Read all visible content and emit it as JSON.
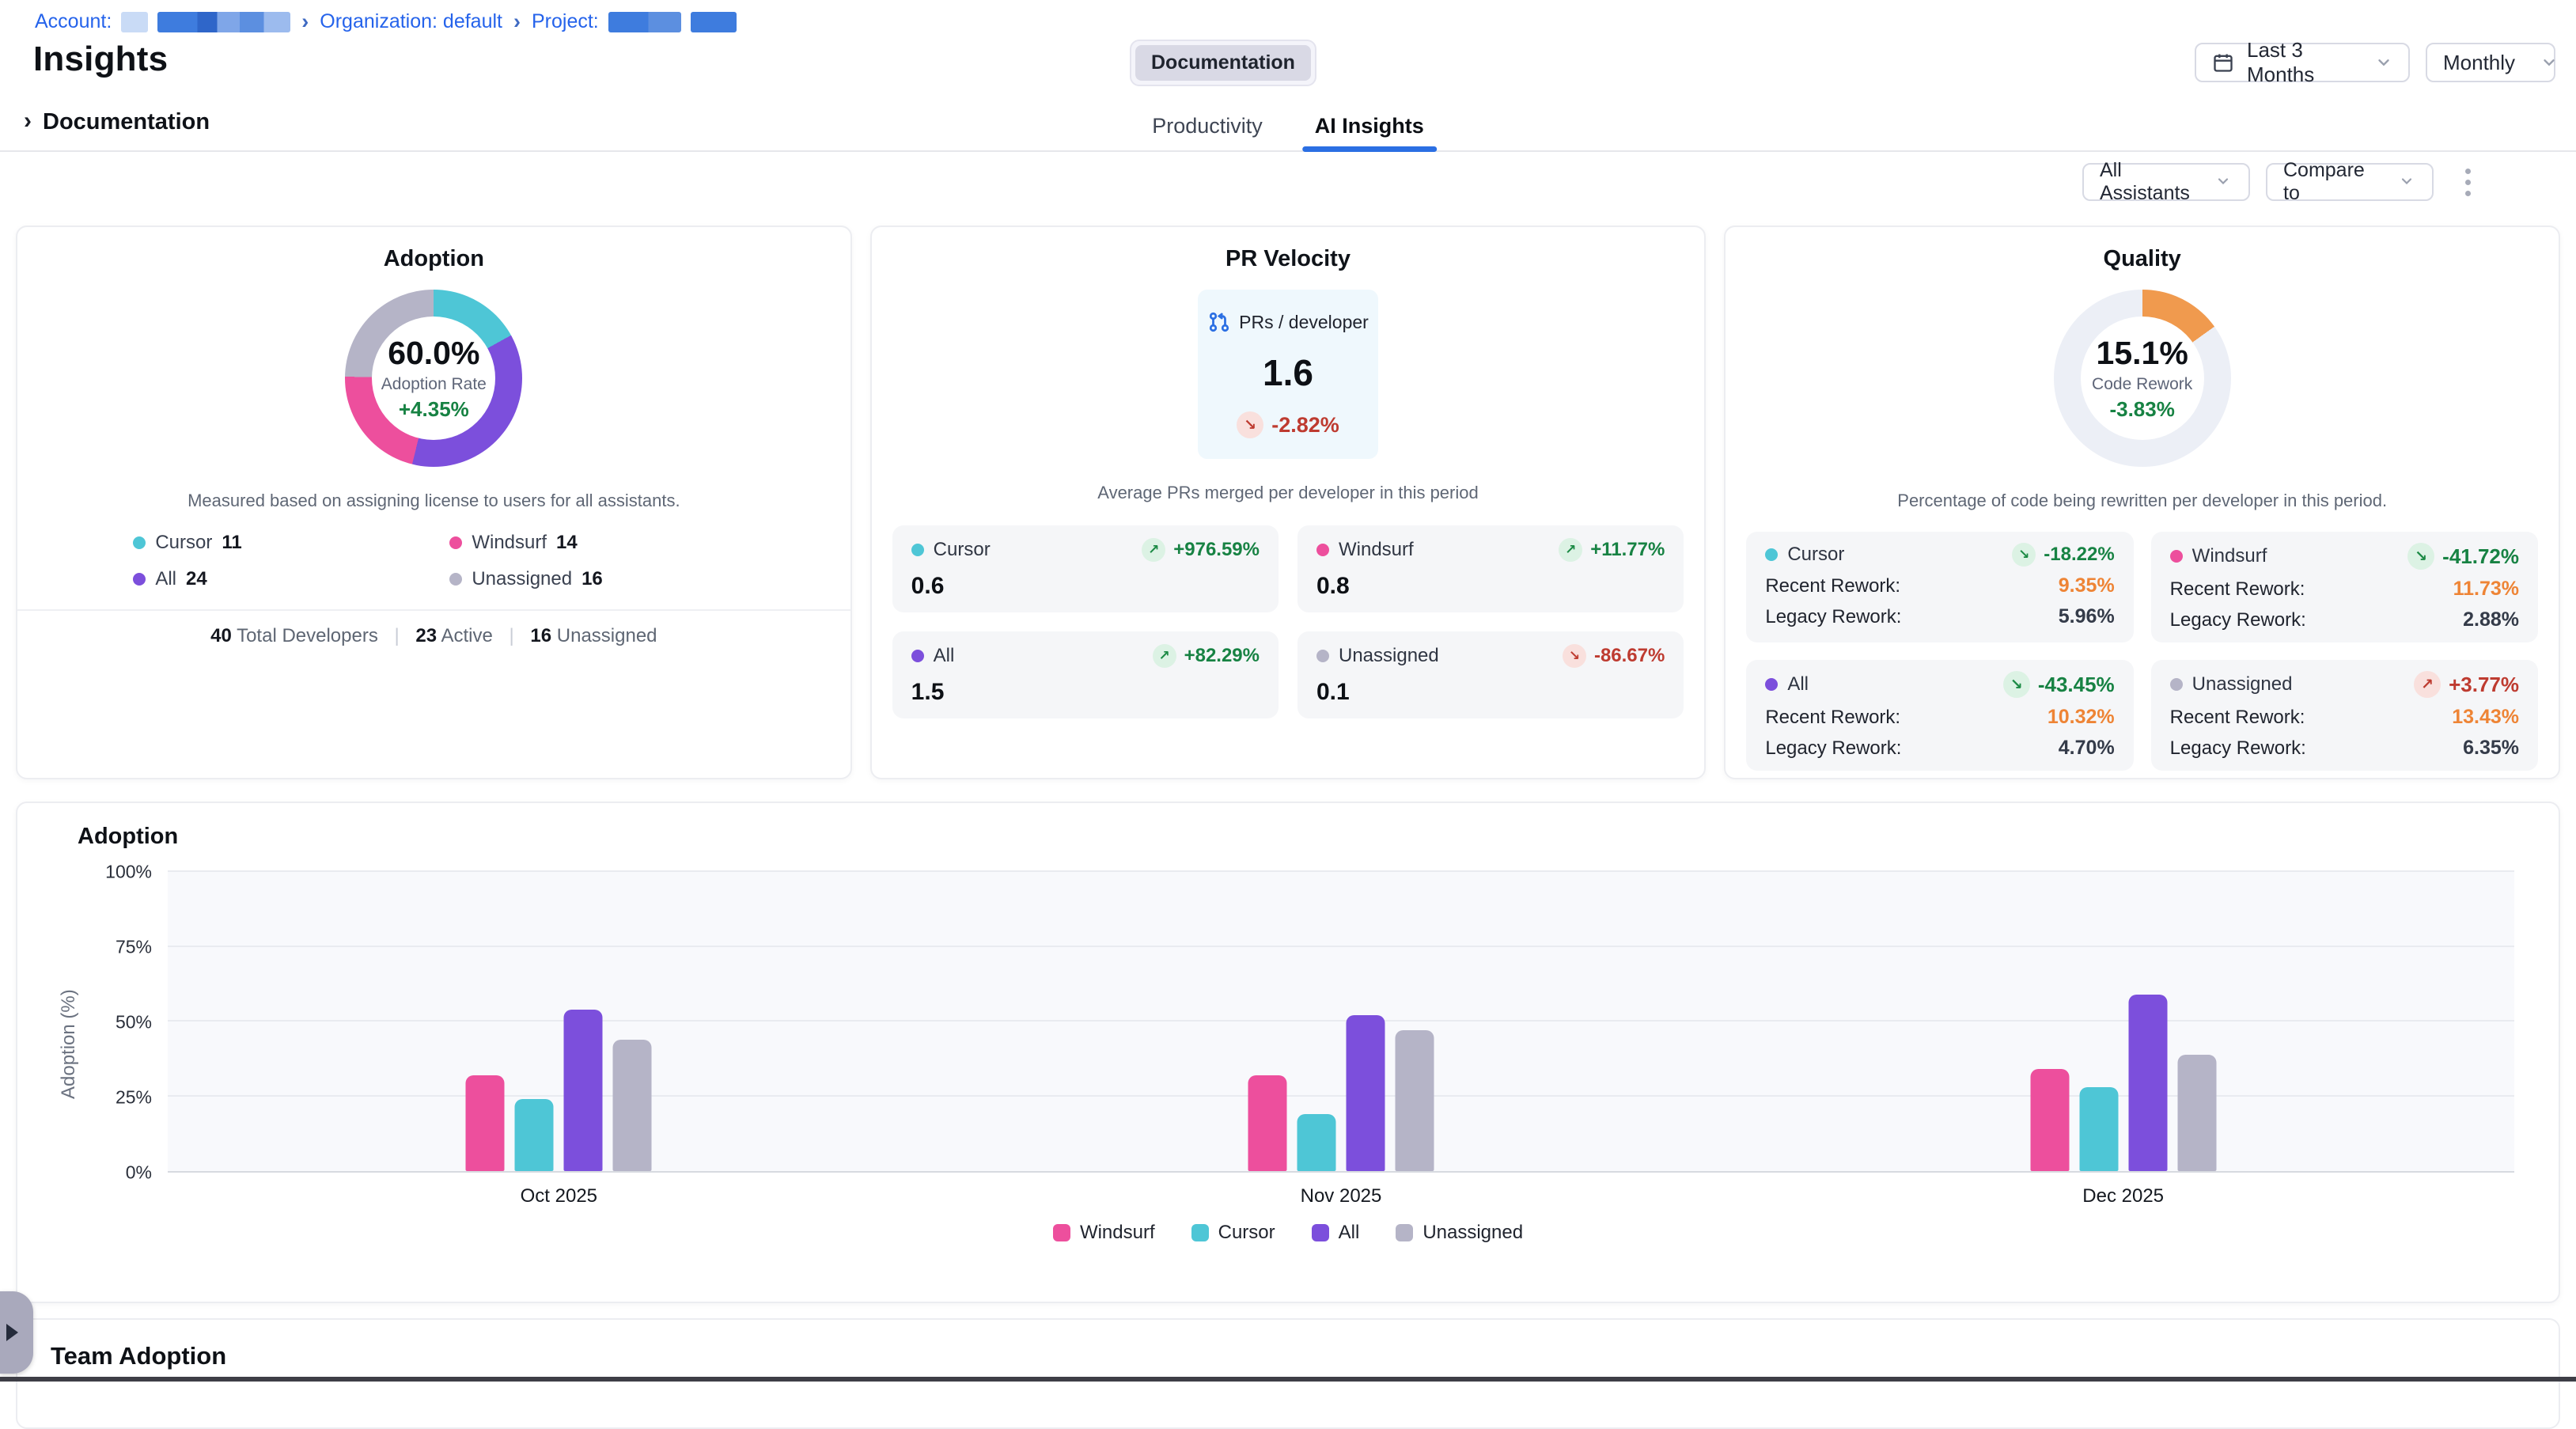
{
  "breadcrumb": {
    "account_label": "Account:",
    "separator": "›",
    "organization_label": "Organization: default",
    "project_label": "Project:"
  },
  "header": {
    "title": "Insights",
    "documentation_chip": "Documentation",
    "time_range": "Last 3 Months",
    "granularity": "Monthly"
  },
  "tabs": [
    {
      "label": "Productivity",
      "active": false
    },
    {
      "label": "AI Insights",
      "active": true
    }
  ],
  "section_header": {
    "title": "Documentation"
  },
  "controls": {
    "assistants_filter": "All Assistants",
    "compare_filter": "Compare to"
  },
  "series_colors": {
    "windsurf": "#ED4F9D",
    "cursor": "#4EC6D6",
    "all": "#7C4FDC",
    "unassigned": "#B5B4C7"
  },
  "accent_colors": {
    "blue": "#2B6FE3",
    "green": "#178243",
    "red": "#BE3B30",
    "orange": "#EE8435"
  },
  "adoption_card": {
    "title": "Adoption",
    "donut": {
      "value": "60.0%",
      "label": "Adoption Rate",
      "delta": "+4.35%",
      "delta_color": "green",
      "segments": [
        {
          "key": "cursor",
          "deg": 61
        },
        {
          "key": "all",
          "deg": 133
        },
        {
          "key": "windsurf",
          "deg": 77
        },
        {
          "key": "unassigned",
          "deg": 89
        }
      ]
    },
    "description": "Measured based on assigning license to users for all assistants.",
    "legend": [
      {
        "key": "cursor",
        "name": "Cursor",
        "count": "11"
      },
      {
        "key": "windsurf",
        "name": "Windsurf",
        "count": "14"
      },
      {
        "key": "all",
        "name": "All",
        "count": "24"
      },
      {
        "key": "unassigned",
        "name": "Unassigned",
        "count": "16"
      }
    ],
    "totals": {
      "developers": "40",
      "developers_label": "Total Developers",
      "active": "23",
      "active_label": "Active",
      "unassigned": "16",
      "unassigned_label": "Unassigned",
      "divider": "|"
    }
  },
  "pr_velocity_card": {
    "title": "PR Velocity",
    "metric": {
      "label": "PRs / developer",
      "value": "1.6",
      "trend": "-2.82%",
      "arrow": "↘",
      "trend_color": "red"
    },
    "description": "Average PRs merged per developer in this period",
    "tiles": [
      {
        "key": "cursor",
        "name": "Cursor",
        "value": "0.6",
        "trend": "+976.59%",
        "arrow": "↗",
        "trend_color": "green"
      },
      {
        "key": "windsurf",
        "name": "Windsurf",
        "value": "0.8",
        "trend": "+11.77%",
        "arrow": "↗",
        "trend_color": "green"
      },
      {
        "key": "all",
        "name": "All",
        "value": "1.5",
        "trend": "+82.29%",
        "arrow": "↗",
        "trend_color": "green"
      },
      {
        "key": "unassigned",
        "name": "Unassigned",
        "value": "0.1",
        "trend": "-86.67%",
        "arrow": "↘",
        "trend_color": "red"
      }
    ]
  },
  "quality_card": {
    "title": "Quality",
    "donut": {
      "value": "15.1%",
      "label": "Code Rework",
      "delta": "-3.83%",
      "delta_color": "green",
      "percent": 15.1,
      "arc_color": "#F09A4E",
      "track_color": "#ECEFF6"
    },
    "description": "Percentage of code being rewritten per developer in this period.",
    "recent_label": "Recent Rework:",
    "legacy_label": "Legacy Rework:",
    "tiles": [
      {
        "key": "cursor",
        "name": "Cursor",
        "trend": "-18.22%",
        "arrow": "↘",
        "trend_color": "green",
        "recent": "9.35%",
        "legacy": "5.96%"
      },
      {
        "key": "windsurf",
        "name": "Windsurf",
        "trend": "-41.72%",
        "arrow": "↘",
        "trend_color": "green",
        "recent": "11.73%",
        "legacy": "2.88%"
      },
      {
        "key": "all",
        "name": "All",
        "trend": "-43.45%",
        "arrow": "↘",
        "trend_color": "green",
        "recent": "10.32%",
        "legacy": "4.70%"
      },
      {
        "key": "unassigned",
        "name": "Unassigned",
        "trend": "+3.77%",
        "arrow": "↗",
        "trend_color": "red",
        "recent": "13.43%",
        "legacy": "6.35%"
      }
    ]
  },
  "chart_data": {
    "type": "bar",
    "title": "Adoption",
    "ylabel": "Adoption (%)",
    "ylim": [
      0,
      100
    ],
    "yticks": [
      0,
      25,
      50,
      75,
      100
    ],
    "ytick_labels": [
      "0%",
      "25%",
      "50%",
      "75%",
      "100%"
    ],
    "categories": [
      "Oct 2025",
      "Nov 2025",
      "Dec 2025"
    ],
    "series": [
      {
        "name": "Windsurf",
        "key": "windsurf",
        "values": [
          32,
          32,
          34
        ]
      },
      {
        "name": "Cursor",
        "key": "cursor",
        "values": [
          24,
          19,
          28
        ]
      },
      {
        "name": "All",
        "key": "all",
        "values": [
          54,
          52,
          59
        ]
      },
      {
        "name": "Unassigned",
        "key": "unassigned",
        "values": [
          44,
          47,
          39
        ]
      }
    ],
    "grid": true,
    "legend_position": "bottom"
  },
  "team_adoption_card": {
    "title": "Team Adoption"
  }
}
